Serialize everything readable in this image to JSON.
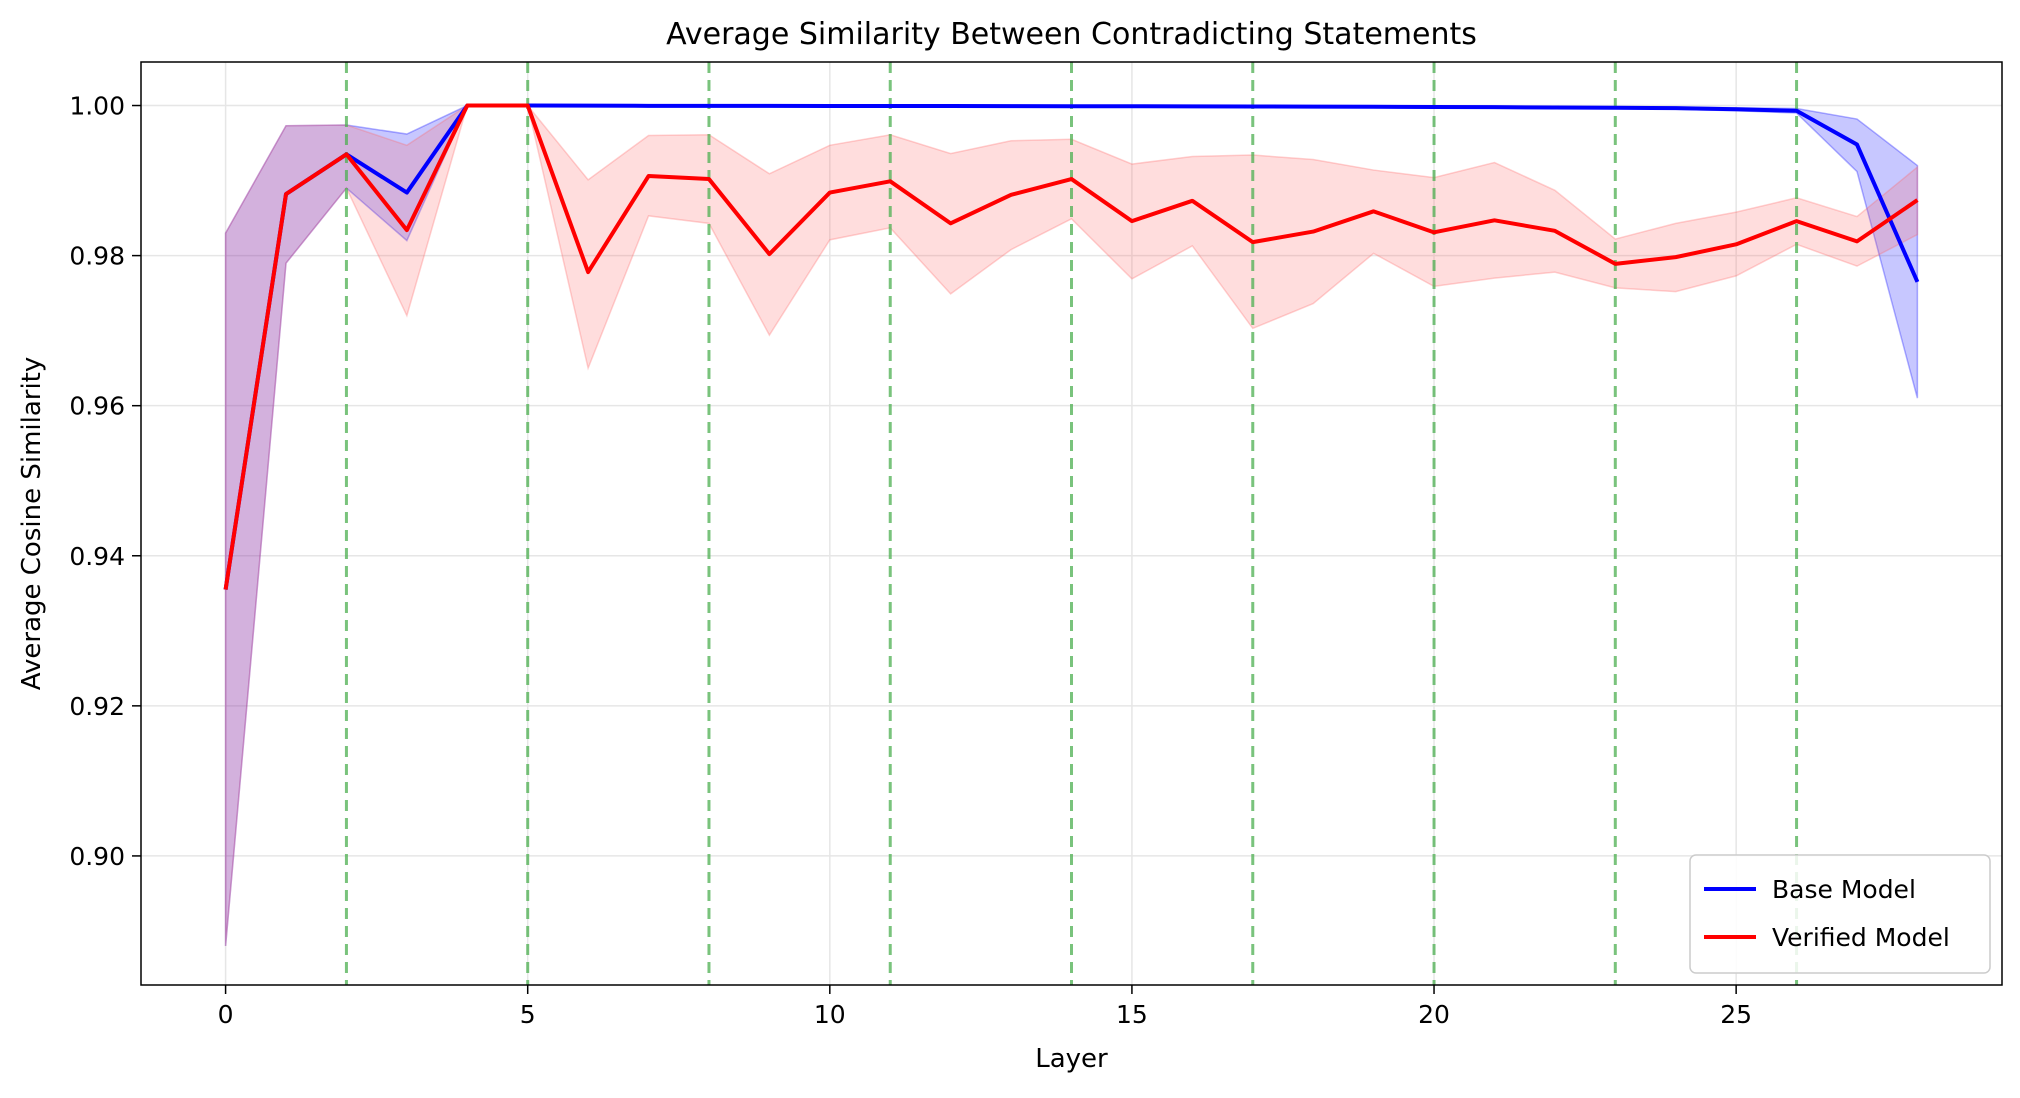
{
  "chart_data": {
    "type": "line",
    "title": "Average Similarity Between Contradicting Statements",
    "xlabel": "Layer",
    "ylabel": "Average Cosine Similarity",
    "xlim": [
      -1.4,
      29.4
    ],
    "ylim": [
      0.8828,
      1.0058
    ],
    "xticks": [
      0,
      5,
      10,
      15,
      20,
      25
    ],
    "yticks": [
      0.9,
      0.92,
      0.94,
      0.96,
      0.98,
      1.0
    ],
    "ytick_labels": [
      "0.90",
      "0.92",
      "0.94",
      "0.96",
      "0.98",
      "1.00"
    ],
    "grid": true,
    "legend_position": "bottom-right",
    "vertical_markers": [
      2,
      5,
      8,
      11,
      14,
      17,
      20,
      23,
      26
    ],
    "vertical_marker_color": "#4caf50",
    "x": [
      0,
      1,
      2,
      3,
      4,
      5,
      6,
      7,
      8,
      9,
      10,
      11,
      12,
      13,
      14,
      15,
      16,
      17,
      18,
      19,
      20,
      21,
      22,
      23,
      24,
      25,
      26,
      27,
      28
    ],
    "series": [
      {
        "name": "Base Model",
        "color": "#0000ff",
        "band_color": "#0000ff",
        "values": [
          0.9355,
          0.9882,
          0.9935,
          0.9884,
          1.0,
          1.0,
          0.99998,
          0.99996,
          0.99995,
          0.99995,
          0.99994,
          0.99993,
          0.99993,
          0.99992,
          0.99991,
          0.9999,
          0.99988,
          0.99987,
          0.99985,
          0.99983,
          0.99981,
          0.99978,
          0.99974,
          0.9997,
          0.99965,
          0.9995,
          0.9993,
          0.9948,
          0.9765
        ],
        "lower": [
          0.888,
          0.979,
          0.989,
          0.982,
          1.0,
          1.0,
          0.99996,
          0.99993,
          0.99991,
          0.99991,
          0.99989,
          0.99988,
          0.99988,
          0.99987,
          0.99985,
          0.99984,
          0.99982,
          0.9998,
          0.99978,
          0.99975,
          0.99973,
          0.99968,
          0.99963,
          0.99958,
          0.99951,
          0.9993,
          0.999,
          0.9912,
          0.961
        ],
        "upper": [
          0.983,
          0.9973,
          0.9974,
          0.9962,
          1.0,
          1.0,
          1.0,
          0.99999,
          0.99999,
          0.99999,
          0.99999,
          0.99998,
          0.99998,
          0.99997,
          0.99997,
          0.99996,
          0.99994,
          0.99994,
          0.99992,
          0.99991,
          0.99989,
          0.99988,
          0.99985,
          0.99982,
          0.99979,
          0.9997,
          0.9996,
          0.9982,
          0.992
        ]
      },
      {
        "name": "Verified Model",
        "color": "#ff0000",
        "band_color": "#ff6666",
        "values": [
          0.9355,
          0.9882,
          0.9935,
          0.9834,
          1.0,
          1.0,
          0.9778,
          0.9906,
          0.9902,
          0.9802,
          0.9884,
          0.9899,
          0.9843,
          0.9881,
          0.9902,
          0.9846,
          0.9873,
          0.9818,
          0.9832,
          0.9859,
          0.9831,
          0.9847,
          0.9833,
          0.9789,
          0.9798,
          0.9815,
          0.9846,
          0.9819,
          0.9874
        ],
        "lower": [
          0.888,
          0.979,
          0.989,
          0.972,
          1.0,
          1.0,
          0.965,
          0.9853,
          0.9843,
          0.9694,
          0.9821,
          0.9837,
          0.9749,
          0.9808,
          0.9849,
          0.9769,
          0.9813,
          0.9703,
          0.9736,
          0.9803,
          0.9759,
          0.977,
          0.9778,
          0.9757,
          0.9752,
          0.9773,
          0.9815,
          0.9786,
          0.9828
        ],
        "upper": [
          0.983,
          0.9973,
          0.9974,
          0.9947,
          1.0,
          1.0,
          0.9901,
          0.996,
          0.9961,
          0.9909,
          0.9947,
          0.9961,
          0.9936,
          0.9953,
          0.9955,
          0.9922,
          0.9932,
          0.9934,
          0.9928,
          0.9914,
          0.9904,
          0.9924,
          0.9887,
          0.9822,
          0.9843,
          0.9858,
          0.9877,
          0.9852,
          0.9918
        ]
      }
    ]
  }
}
